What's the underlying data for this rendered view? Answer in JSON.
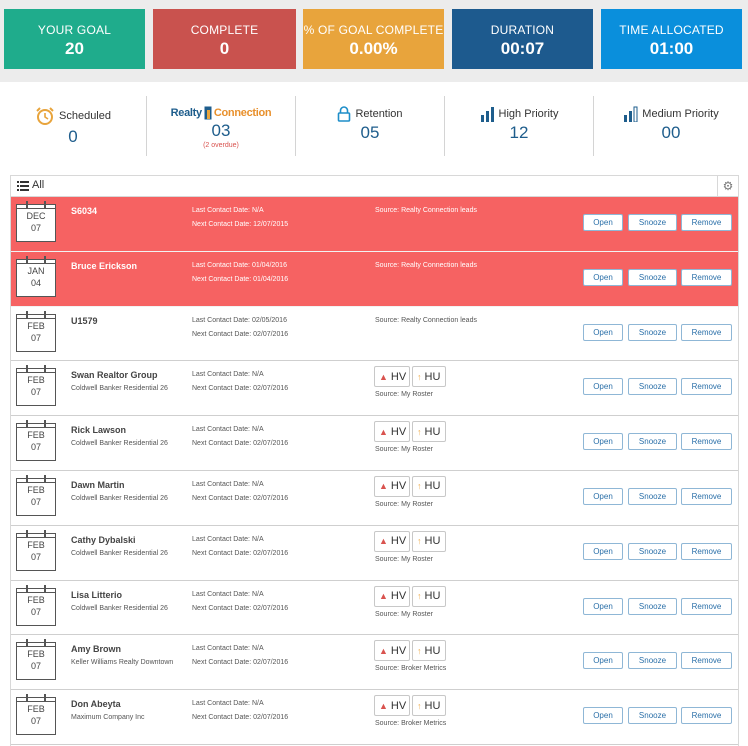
{
  "top_stats": [
    {
      "label": "YOUR GOAL",
      "value": "20",
      "color": "#1fac8c"
    },
    {
      "label": "COMPLETE",
      "value": "0",
      "color": "#c9524e"
    },
    {
      "label": "% OF GOAL COMPLETE",
      "value": "0.00%",
      "color": "#e8a43c"
    },
    {
      "label": "DURATION",
      "value": "00:07",
      "color": "#1d5a8e"
    },
    {
      "label": "TIME ALLOCATED",
      "value": "01:00",
      "color": "#0a8fdc"
    }
  ],
  "categories": [
    {
      "label": "Scheduled",
      "count": "0",
      "icon": "alarm-clock-icon"
    },
    {
      "label_part1": "Realty",
      "label_part2": "Connection",
      "count": "03",
      "sub": "(2 overdue)",
      "icon": "realty-connection-logo"
    },
    {
      "label": "Retention",
      "count": "05",
      "icon": "lock-icon"
    },
    {
      "label": "High Priority",
      "count": "12",
      "icon": "bars-high-icon"
    },
    {
      "label": "Medium Priority",
      "count": "00",
      "icon": "bars-medium-icon"
    }
  ],
  "filter": {
    "label": "All",
    "icon": "list-icon",
    "settings_icon": "gear-icon"
  },
  "labels": {
    "last_contact": "Last Contact Date:",
    "next_contact": "Next Contact Date:",
    "source": "Source:",
    "hv": "HV",
    "hu": "HU",
    "open": "Open",
    "snooze": "Snooze",
    "remove": "Remove"
  },
  "contacts": [
    {
      "month": "DEC",
      "day": "07",
      "name": "S6034",
      "company": "",
      "last": "N/A",
      "next": "12/07/2015",
      "source": "Realty Connection leads",
      "tags": false,
      "overdue": true
    },
    {
      "month": "JAN",
      "day": "04",
      "name": "Bruce Erickson",
      "company": "",
      "last": "01/04/2016",
      "next": "01/04/2016",
      "source": "Realty Connection leads",
      "tags": false,
      "overdue": true
    },
    {
      "month": "FEB",
      "day": "07",
      "name": "U1579",
      "company": "",
      "last": "02/05/2016",
      "next": "02/07/2016",
      "source": "Realty Connection leads",
      "tags": false,
      "overdue": false
    },
    {
      "month": "FEB",
      "day": "07",
      "name": "Swan Realtor Group",
      "company": "Coldwell Banker Residential 26",
      "last": "N/A",
      "next": "02/07/2016",
      "source": "My Roster",
      "tags": true,
      "overdue": false
    },
    {
      "month": "FEB",
      "day": "07",
      "name": "Rick Lawson",
      "company": "Coldwell Banker Residential 26",
      "last": "N/A",
      "next": "02/07/2016",
      "source": "My Roster",
      "tags": true,
      "overdue": false
    },
    {
      "month": "FEB",
      "day": "07",
      "name": "Dawn Martin",
      "company": "Coldwell Banker Residential 26",
      "last": "N/A",
      "next": "02/07/2016",
      "source": "My Roster",
      "tags": true,
      "overdue": false
    },
    {
      "month": "FEB",
      "day": "07",
      "name": "Cathy Dybalski",
      "company": "Coldwell Banker Residential 26",
      "last": "N/A",
      "next": "02/07/2016",
      "source": "My Roster",
      "tags": true,
      "overdue": false
    },
    {
      "month": "FEB",
      "day": "07",
      "name": "Lisa Litterio",
      "company": "Coldwell Banker Residential 26",
      "last": "N/A",
      "next": "02/07/2016",
      "source": "My Roster",
      "tags": true,
      "overdue": false
    },
    {
      "month": "FEB",
      "day": "07",
      "name": "Amy Brown",
      "company": "Keller Williams Realty Downtown",
      "last": "N/A",
      "next": "02/07/2016",
      "source": "Broker Metrics",
      "tags": true,
      "overdue": false
    },
    {
      "month": "FEB",
      "day": "07",
      "name": "Don Abeyta",
      "company": "Maximum Company Inc",
      "last": "N/A",
      "next": "02/07/2016",
      "source": "Broker Metrics",
      "tags": true,
      "overdue": false
    }
  ]
}
